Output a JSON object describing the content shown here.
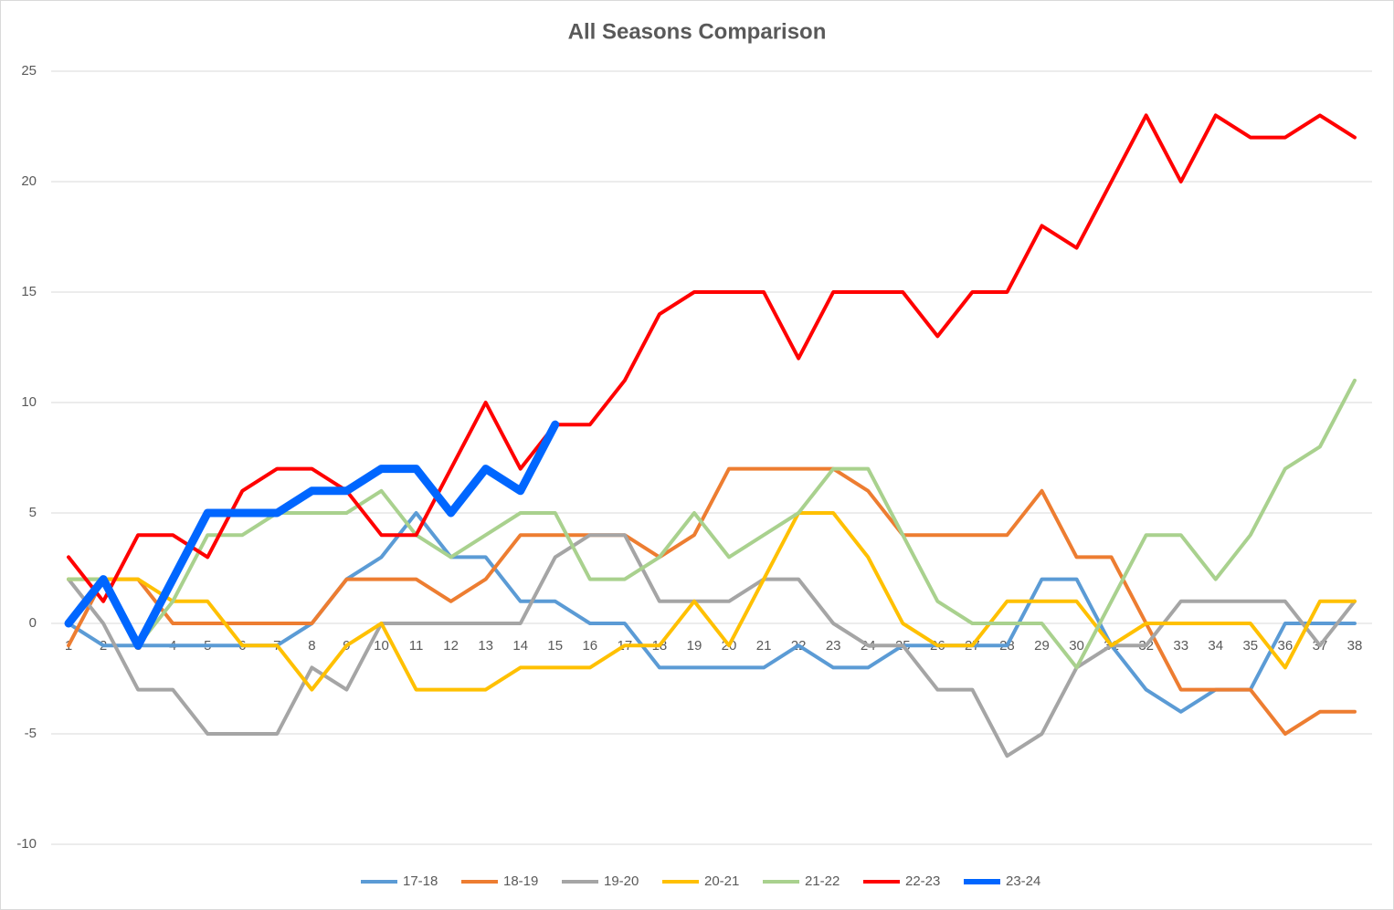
{
  "chart_data": {
    "type": "line",
    "title": "All Seasons Comparison",
    "categories": [
      "1",
      "2",
      "3",
      "4",
      "5",
      "6",
      "7",
      "8",
      "9",
      "10",
      "11",
      "12",
      "13",
      "14",
      "15",
      "16",
      "17",
      "18",
      "19",
      "20",
      "21",
      "22",
      "23",
      "24",
      "25",
      "26",
      "27",
      "28",
      "29",
      "30",
      "31",
      "32",
      "33",
      "34",
      "35",
      "36",
      "37",
      "38"
    ],
    "series": [
      {
        "name": "17-18",
        "color": "#5b9bd5",
        "values": [
          0,
          -1,
          -1,
          -1,
          -1,
          -1,
          -1,
          0,
          2,
          3,
          5,
          3,
          3,
          1,
          1,
          0,
          0,
          -2,
          -2,
          -2,
          -2,
          -1,
          -2,
          -2,
          -1,
          -1,
          -1,
          -1,
          2,
          2,
          -1,
          -3,
          -4,
          -3,
          -3,
          0,
          0,
          0
        ]
      },
      {
        "name": "18-19",
        "color": "#ed7d31",
        "values": [
          -1,
          2,
          2,
          0,
          0,
          0,
          0,
          0,
          2,
          2,
          2,
          1,
          2,
          4,
          4,
          4,
          4,
          3,
          4,
          7,
          7,
          7,
          7,
          6,
          4,
          4,
          4,
          4,
          6,
          3,
          3,
          0,
          -3,
          -3,
          -3,
          -5,
          -4,
          -4
        ]
      },
      {
        "name": "19-20",
        "color": "#a5a5a5",
        "values": [
          2,
          0,
          -3,
          -3,
          -5,
          -5,
          -5,
          -2,
          -3,
          0,
          0,
          0,
          0,
          0,
          3,
          4,
          4,
          1,
          1,
          1,
          2,
          2,
          0,
          -1,
          -1,
          -3,
          -3,
          -6,
          -5,
          -2,
          -1,
          -1,
          1,
          1,
          1,
          1,
          -1,
          1
        ]
      },
      {
        "name": "20-21",
        "color": "#ffc000",
        "values": [
          2,
          2,
          2,
          1,
          1,
          -1,
          -1,
          -3,
          -1,
          0,
          -3,
          -3,
          -3,
          -2,
          -2,
          -2,
          -1,
          -1,
          1,
          -1,
          2,
          5,
          5,
          3,
          0,
          -1,
          -1,
          1,
          1,
          1,
          -1,
          0,
          0,
          0,
          0,
          -2,
          1,
          1
        ]
      },
      {
        "name": "21-22",
        "color": "#a9d18e",
        "values": [
          2,
          2,
          -1,
          1,
          4,
          4,
          5,
          5,
          5,
          6,
          4,
          3,
          4,
          5,
          5,
          2,
          2,
          3,
          5,
          3,
          4,
          5,
          7,
          7,
          4,
          1,
          0,
          0,
          0,
          -2,
          1,
          4,
          4,
          2,
          4,
          7,
          8,
          11
        ]
      },
      {
        "name": "22-23",
        "color": "#ff0000",
        "values": [
          3,
          1,
          4,
          4,
          3,
          6,
          7,
          7,
          6,
          4,
          4,
          7,
          10,
          7,
          9,
          9,
          11,
          14,
          15,
          15,
          15,
          12,
          15,
          15,
          15,
          13,
          15,
          15,
          18,
          17,
          20,
          23,
          20,
          23,
          22,
          22,
          23,
          22
        ]
      },
      {
        "name": "23-24",
        "color": "#0066ff",
        "values": [
          0,
          2,
          -1,
          2,
          5,
          5,
          5,
          6,
          6,
          7,
          7,
          5,
          7,
          6,
          9,
          null,
          null,
          null,
          null,
          null,
          null,
          null,
          null,
          null,
          null,
          null,
          null,
          null,
          null,
          null,
          null,
          null,
          null,
          null,
          null,
          null,
          null,
          null
        ]
      }
    ],
    "ylim": [
      -10,
      25
    ],
    "yticks": [
      -10,
      -5,
      0,
      5,
      10,
      15,
      20,
      25
    ],
    "grid": true,
    "legend": "bottom"
  }
}
